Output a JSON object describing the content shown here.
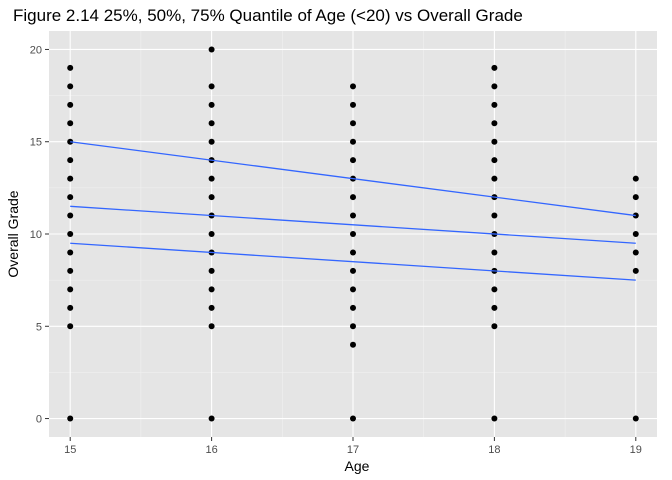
{
  "chart_data": {
    "type": "scatter",
    "title": "Figure 2.14 25%, 50%, 75% Quantile of Age (<20) vs Overall Grade",
    "xlabel": "Age",
    "ylabel": "Overall Grade",
    "xlim": [
      14.85,
      19.15
    ],
    "ylim": [
      -1,
      21
    ],
    "x_ticks": [
      15,
      16,
      17,
      18,
      19
    ],
    "y_ticks": [
      0,
      5,
      10,
      15,
      20
    ],
    "grid": true,
    "legend": "none",
    "colors": {
      "panel": "#e5e5e5",
      "grid_major": "#ffffff",
      "points": "#000000",
      "lines": "#3366ff"
    },
    "points": [
      {
        "x": 15,
        "y": [
          0,
          5,
          6,
          7,
          8,
          9,
          10,
          11,
          12,
          13,
          14,
          15,
          16,
          17,
          18,
          19
        ]
      },
      {
        "x": 16,
        "y": [
          0,
          5,
          6,
          7,
          8,
          9,
          10,
          11,
          12,
          13,
          14,
          15,
          16,
          17,
          18,
          20
        ]
      },
      {
        "x": 17,
        "y": [
          0,
          4,
          5,
          6,
          7,
          8,
          9,
          10,
          11,
          12,
          13,
          14,
          15,
          16,
          17,
          18
        ]
      },
      {
        "x": 18,
        "y": [
          0,
          5,
          6,
          7,
          8,
          9,
          10,
          11,
          12,
          13,
          14,
          15,
          16,
          17,
          18,
          19
        ]
      },
      {
        "x": 19,
        "y": [
          0,
          8,
          9,
          10,
          11,
          12,
          13
        ]
      }
    ],
    "series": [
      {
        "quantile": 0.25,
        "x": [
          15,
          19
        ],
        "y": [
          9.5,
          7.5
        ]
      },
      {
        "quantile": 0.5,
        "x": [
          15,
          19
        ],
        "y": [
          11.5,
          9.5
        ]
      },
      {
        "quantile": 0.75,
        "x": [
          15,
          19
        ],
        "y": [
          15,
          11
        ]
      }
    ]
  }
}
